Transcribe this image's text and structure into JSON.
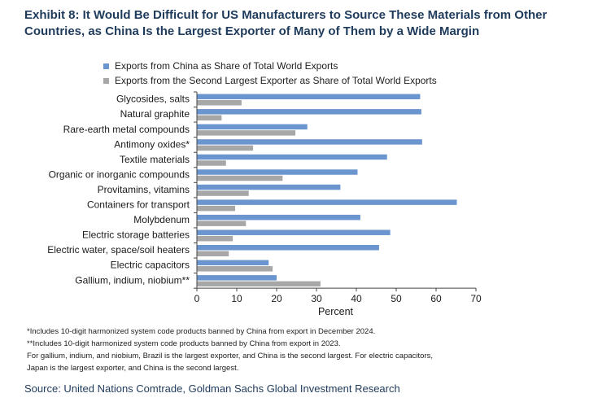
{
  "title": "Exhibit 8: It Would Be Difficult for US Manufacturers to Source These Materials from Other Countries, as China Is the Largest Exporter of Many of Them by a Wide Margin",
  "footnotes": [
    "*Includes 10-digit harmonized system code products banned by China from export in December 2024.",
    "**Includes 10-digit harmonized system code products banned by China from export in 2023.",
    "For gallium, indium, and niobium, Brazil is the largest exporter, and China is the second largest. For electric capacitors,",
    "Japan is the largest exporter, and China is the second largest."
  ],
  "source": "Source: United Nations Comtrade, Goldman Sachs Global Investment Research",
  "colors": {
    "china": "#6b95cf",
    "second": "#a7a7a7",
    "title": "#1f3b5c"
  },
  "chart_data": {
    "type": "bar",
    "orientation": "horizontal",
    "categories": [
      "Glycosides, salts",
      "Natural graphite",
      "Rare-earth metal compounds",
      "Antimony oxides*",
      "Textile materials",
      "Organic or inorganic compounds",
      "Provitamins, vitamins",
      "Containers for transport",
      "Molybdenum",
      "Electric storage batteries",
      "Electric water, space/soil heaters",
      "Electric capacitors",
      "Gallium, indium, niobium**"
    ],
    "series": [
      {
        "name": "Exports from China as Share of Total World Exports",
        "color": "#6b95cf",
        "values": [
          56,
          56.3,
          27.7,
          56.5,
          47.7,
          40.3,
          36,
          65.2,
          41,
          48.5,
          45.7,
          18,
          20
        ]
      },
      {
        "name": "Exports from the Second Largest Exporter as Share of Total World Exports",
        "color": "#a7a7a7",
        "values": [
          11.2,
          6.2,
          24.7,
          14.1,
          7.3,
          21.5,
          13,
          9.6,
          12.3,
          9,
          8,
          19,
          31
        ]
      }
    ],
    "xlabel": "Percent",
    "ylabel": "",
    "xlim": [
      0,
      70
    ],
    "ticks": [
      0,
      10,
      20,
      30,
      40,
      50,
      60,
      70
    ],
    "grid": false,
    "legend_position": "top-left"
  }
}
